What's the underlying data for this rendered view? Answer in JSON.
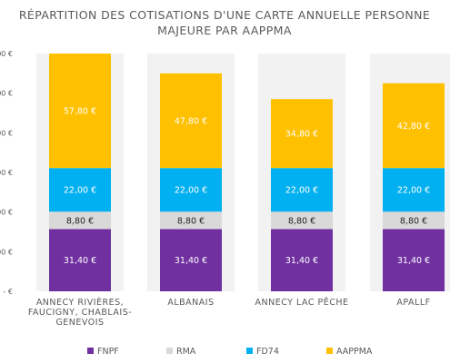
{
  "chart_data": {
    "type": "bar",
    "stacked": true,
    "title_lines": [
      "RÉPARTITION DES COTISATIONS D'UNE CARTE ANNUELLE PERSONNE",
      "MAJEURE PAR AAPPMA"
    ],
    "categories": [
      [
        "ANNECY RIVIÈRES,",
        "FAUCIGNY, CHABLAIS-",
        "GENEVOIS"
      ],
      [
        "ALBANAIS"
      ],
      [
        "ANNECY LAC PÊCHE"
      ],
      [
        "APALLF"
      ]
    ],
    "y_ticks": [
      "- €",
      "20,00 €",
      "40,00 €",
      "60,00 €",
      "80,00 €",
      "100,00 €",
      "120,00 €"
    ],
    "ylim": [
      0,
      120
    ],
    "grid": false,
    "legend_position": "bottom",
    "series": [
      {
        "name": "FNPF",
        "color": "#7030a0",
        "label_color": "#ffffff",
        "values": [
          31.4,
          31.4,
          31.4,
          31.4
        ],
        "labels": [
          "31,40 €",
          "31,40 €",
          "31,40 €",
          "31,40 €"
        ]
      },
      {
        "name": "RMA",
        "color": "#d9d9d9",
        "label_color": "#262626",
        "values": [
          8.8,
          8.8,
          8.8,
          8.8
        ],
        "labels": [
          "8,80 €",
          "8,80 €",
          "8,80 €",
          "8,80 €"
        ]
      },
      {
        "name": "FD74",
        "color": "#00b0f0",
        "label_color": "#ffffff",
        "values": [
          22.0,
          22.0,
          22.0,
          22.0
        ],
        "labels": [
          "22,00 €",
          "22,00 €",
          "22,00 €",
          "22,00 €"
        ]
      },
      {
        "name": "AAPPMA",
        "color": "#ffc000",
        "label_color": "#ffffff",
        "values": [
          57.8,
          47.8,
          34.8,
          42.8
        ],
        "labels": [
          "57,80 €",
          "47,80 €",
          "34,80 €",
          "42,80 €"
        ]
      }
    ]
  }
}
